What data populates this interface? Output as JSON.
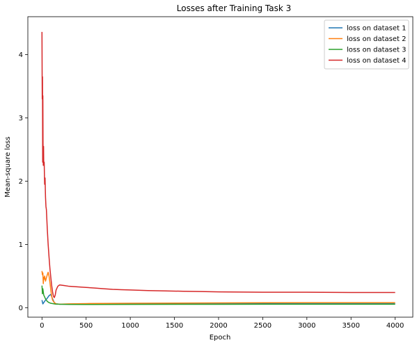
{
  "chart_data": {
    "type": "line",
    "title": "Losses after Training Task 3",
    "xlabel": "Epoch",
    "ylabel": "Mean-square loss",
    "xlim": [
      -160,
      4200
    ],
    "ylim": [
      -0.15,
      4.6
    ],
    "xticks": [
      0,
      500,
      1000,
      1500,
      2000,
      2500,
      3000,
      3500,
      4000
    ],
    "yticks": [
      0,
      1,
      2,
      3,
      4
    ],
    "legend_position": "top-right",
    "grid": false,
    "series": [
      {
        "name": "loss on dataset 1",
        "color": "#1f77b4",
        "x": [
          0,
          10,
          20,
          40,
          60,
          80,
          100,
          120,
          140,
          160,
          200,
          300,
          500,
          1000,
          2000,
          3000,
          4000
        ],
        "y": [
          0.12,
          0.06,
          0.08,
          0.12,
          0.15,
          0.19,
          0.21,
          0.14,
          0.08,
          0.06,
          0.055,
          0.055,
          0.055,
          0.058,
          0.06,
          0.062,
          0.062
        ]
      },
      {
        "name": "loss on dataset 2",
        "color": "#ff7f0e",
        "x": [
          0,
          5,
          10,
          15,
          20,
          25,
          30,
          40,
          50,
          60,
          70,
          80,
          90,
          100,
          110,
          120,
          140,
          160,
          200,
          300,
          500,
          1000,
          2000,
          3000,
          4000
        ],
        "y": [
          0.58,
          0.52,
          0.55,
          0.38,
          0.48,
          0.45,
          0.5,
          0.42,
          0.47,
          0.52,
          0.56,
          0.5,
          0.4,
          0.28,
          0.18,
          0.12,
          0.08,
          0.06,
          0.055,
          0.06,
          0.065,
          0.07,
          0.075,
          0.08,
          0.08
        ]
      },
      {
        "name": "loss on dataset 3",
        "color": "#2ca02c",
        "x": [
          0,
          5,
          10,
          20,
          40,
          60,
          80,
          100,
          150,
          200,
          300,
          500,
          1000,
          2000,
          3000,
          4000
        ],
        "y": [
          0.35,
          0.22,
          0.3,
          0.2,
          0.14,
          0.1,
          0.08,
          0.07,
          0.058,
          0.055,
          0.052,
          0.05,
          0.052,
          0.054,
          0.055,
          0.055
        ]
      },
      {
        "name": "loss on dataset 4",
        "color": "#d62728",
        "x": [
          0,
          3,
          6,
          8,
          10,
          12,
          15,
          18,
          20,
          25,
          30,
          35,
          40,
          45,
          50,
          60,
          70,
          80,
          90,
          100,
          110,
          120,
          130,
          140,
          150,
          160,
          180,
          200,
          250,
          300,
          400,
          500,
          600,
          700,
          800,
          900,
          1000,
          1200,
          1400,
          1600,
          1800,
          2000,
          2500,
          3000,
          3500,
          4000
        ],
        "y": [
          4.36,
          3.3,
          3.65,
          2.3,
          3.35,
          2.6,
          2.25,
          2.55,
          2.25,
          2.3,
          1.95,
          2.05,
          1.75,
          1.6,
          1.55,
          1.25,
          1.0,
          0.8,
          0.62,
          0.48,
          0.35,
          0.25,
          0.18,
          0.16,
          0.2,
          0.28,
          0.34,
          0.36,
          0.35,
          0.34,
          0.33,
          0.32,
          0.31,
          0.3,
          0.29,
          0.285,
          0.28,
          0.27,
          0.265,
          0.26,
          0.255,
          0.25,
          0.245,
          0.245,
          0.24,
          0.24
        ]
      }
    ]
  }
}
